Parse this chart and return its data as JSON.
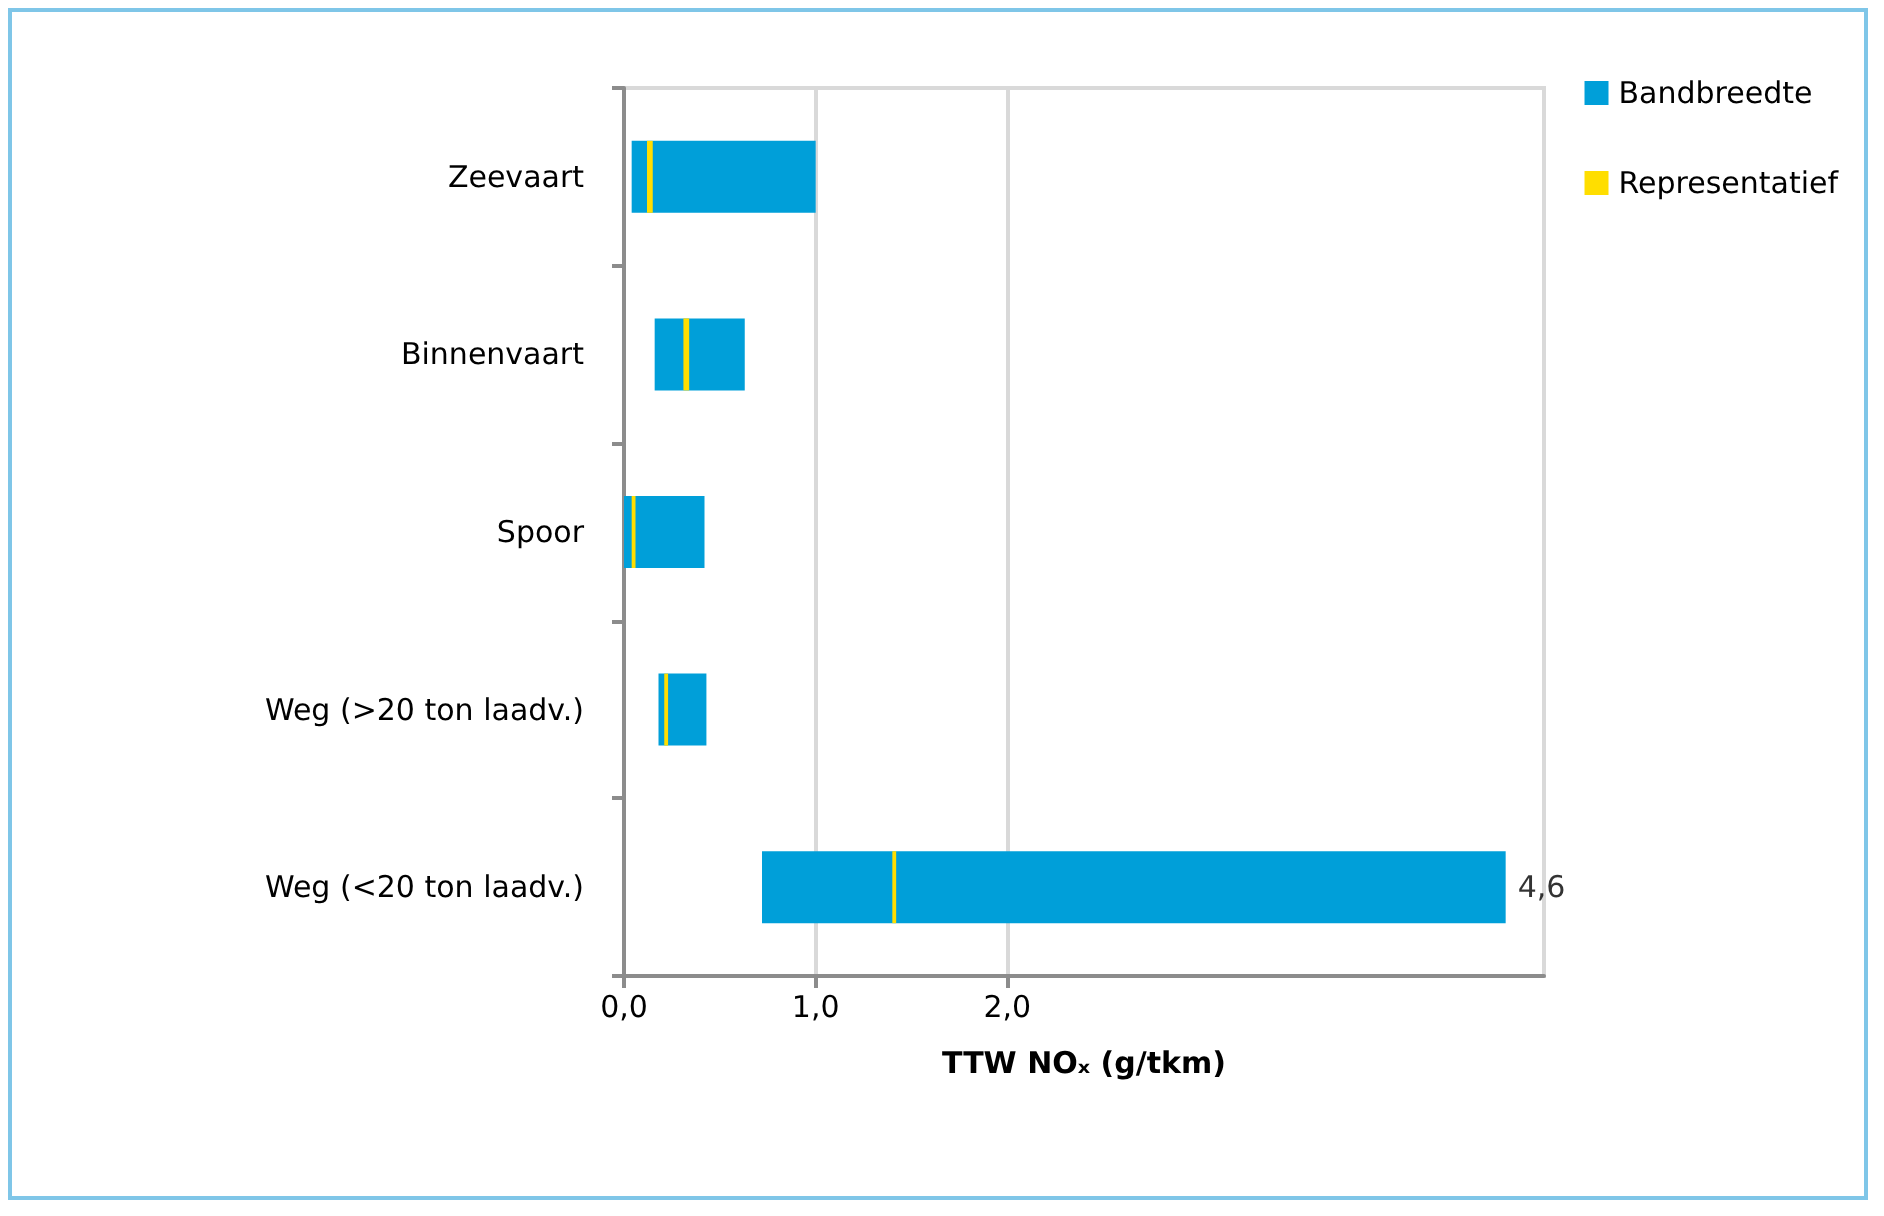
{
  "chart_data": {
    "type": "bar",
    "orientation": "horizontal",
    "xlabel": "TTW NOₓ (g/tkm)",
    "categories": [
      "Zeevaart",
      "Binnenvaart",
      "Spoor",
      "Weg (>20 ton laadv.)",
      "Weg (<20 ton laadv.)"
    ],
    "series": [
      {
        "name": "Bandbreedte",
        "color": "#009fd9",
        "base": [
          0.04,
          0.16,
          0,
          0.18,
          0.72
        ],
        "values": [
          0.96,
          0.47,
          0.42,
          0.25,
          3.88
        ]
      },
      {
        "name": "Representatief",
        "color": "#ffde00",
        "base": [
          0.12,
          0.31,
          0.04,
          0.21,
          1.4
        ],
        "values": [
          0.03,
          0.03,
          0.02,
          0.02,
          0.02
        ]
      }
    ],
    "annotations": [
      "4,6"
    ],
    "xlim": [
      0,
      4.8
    ],
    "xticks": [
      {
        "value": 0,
        "label": "0,0"
      },
      {
        "value": 1,
        "label": "1,0"
      },
      {
        "value": 2,
        "label": "2,0"
      }
    ],
    "grid": "x",
    "legend": "top right"
  }
}
